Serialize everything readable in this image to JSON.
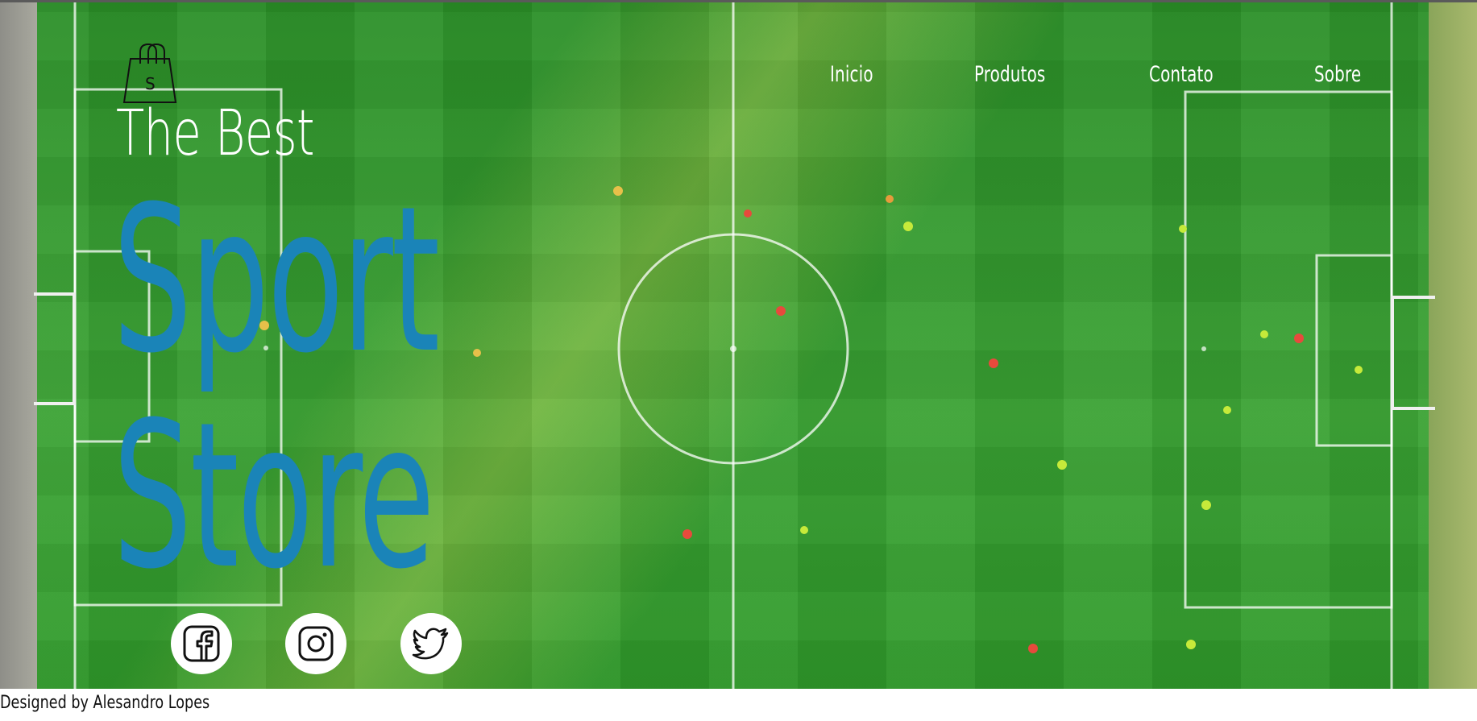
{
  "brand": {
    "logo_icon": "shopping-bag-icon",
    "logo_letter": "S"
  },
  "nav": {
    "items": [
      {
        "label": "Inicio"
      },
      {
        "label": "Produtos"
      },
      {
        "label": "Contato"
      },
      {
        "label": "Sobre"
      }
    ]
  },
  "hero": {
    "title_small": "The Best",
    "title_line1": "Sport",
    "title_line2": "Store",
    "title_color": "#1a84b8",
    "background_image": "aerial-football-field"
  },
  "social": [
    {
      "icon": "facebook-icon"
    },
    {
      "icon": "instagram-icon"
    },
    {
      "icon": "twitter-icon"
    }
  ],
  "footer": {
    "credit": "Designed by Alesandro Lopes"
  }
}
